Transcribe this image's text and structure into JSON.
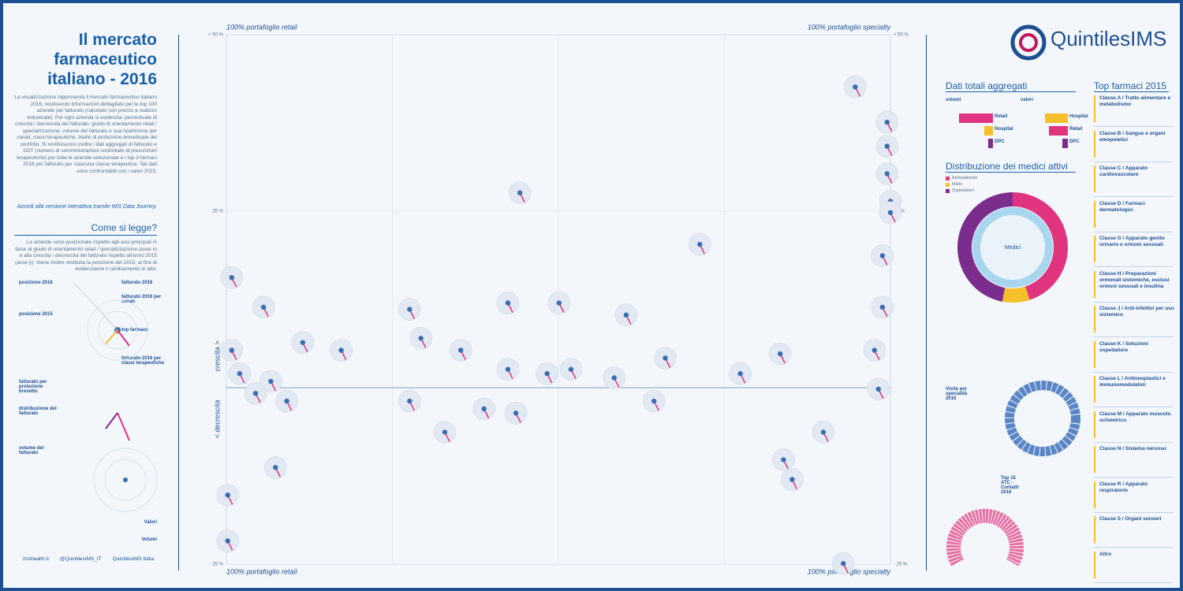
{
  "header": {
    "title": "Il mercato farmaceutico italiano - 2016",
    "intro": "La visualizzazione rappresenta il mercato farmaceutico italiano 2016, restituendo informazioni dettagliate per le top 100 aziende per fatturato (calcolato con prezzo a realizzo industriale). Per ogni azienda si evidenzia: percentuale di crescita / decrescita del fatturato, grado di orientamento retail / specializzazione, volume del fatturato e sua ripartizione per canali, classi terapeutiche, livello di protezione brevettuale del portfolio. Si restituiscono inoltre i dati aggregati di fatturato e DDT (numero di somministrazioni controllate di prescrizioni terapeutiche) per tutte le aziende selezionate e i top 3 farmaci 2016 per fatturato per ciascuna classe terapeutica. Tali dati sono confrontabili con i valori 2015.",
    "link": "Accedi alla versione interattiva tramite IMS Data Journey."
  },
  "how_to_read": {
    "title": "Come si legge?",
    "text": "Le aziende sono posizionate rispetto agli assi principali in base al grado di orientamento retail / specializzazione (asse x) e alla crescita / decrescita del fatturato rispetto all'anno 2015 (asse y). Viene inoltre restituita la posizione del 2015, al fine di evidenziarne il cambiamento in atto.",
    "legend": [
      "posizione 2016",
      "fatturato 2016",
      "posizione 2015",
      "fatturato 2016 per canali",
      "top farmaco",
      "fatturato 2016 per classi terapeutiche",
      "fatturato per protezione brevetto",
      "distribuzione del fatturato",
      "volume del fatturato"
    ],
    "notes": [
      "Valori",
      "Volumi"
    ]
  },
  "footer": {
    "social": [
      "imshealth.it",
      "@QuintilesIMS_IT",
      "QuintilesIMS Italia"
    ]
  },
  "logo": "QuintilesIMS",
  "chart_data": {
    "type": "scatter",
    "corners": {
      "top_left": "100% portafoglio retail",
      "top_right": "100% portafoglio specialty",
      "bottom_left": "100% portafoglio retail",
      "bottom_right": "100% portafoglio specialty"
    },
    "y_label_up": "crescita >",
    "y_label_down": "< decrescita",
    "xlim": [
      0,
      100
    ],
    "ylim": [
      -25,
      50
    ],
    "yticks": [
      {
        "value": 50,
        "label": "+ 50 %"
      },
      {
        "value": 25,
        "label": "25 %"
      },
      {
        "value": -25,
        "label": "- 25 %"
      }
    ],
    "color": "#3b6db3",
    "x": [
      94.7,
      99.5,
      99.5,
      99.5,
      100,
      100,
      98.8,
      44.2,
      71.3,
      0.8,
      50.1,
      42.4,
      35.3,
      29.3,
      27.6,
      27.6,
      32.9,
      43.6,
      42.4,
      48.3,
      51.9,
      58.4,
      64.4,
      60.2,
      66.1,
      38.8,
      83.4,
      89.9,
      83.9,
      85.2,
      92.9,
      77.4,
      0.8,
      2,
      4.4,
      6.7,
      9.1,
      5.6,
      11.5,
      17.3,
      0.2,
      0.2,
      7.4,
      98.2,
      97.6,
      98.8
    ],
    "values": [
      42.6,
      37.6,
      34.2,
      30.3,
      26.4,
      24.8,
      18.7,
      27.6,
      20.3,
      15.6,
      12,
      12,
      5.3,
      7,
      11.1,
      -1.9,
      -6.3,
      -3.6,
      2.6,
      2,
      2.6,
      1.4,
      -1.9,
      10.3,
      4.2,
      -3,
      4.8,
      -6.3,
      -10.2,
      -13,
      -24.9,
      2,
      5.3,
      2,
      -0.8,
      0.9,
      -1.9,
      11.4,
      6.4,
      5.3,
      -15.2,
      -21.7,
      -11.3,
      -0.2,
      5.3,
      11.4
    ]
  },
  "aggregates": {
    "title": "Dati totali aggregati",
    "groups": [
      {
        "name": "volumi",
        "bars": [
          {
            "name": "Retail",
            "color": "#e0347f",
            "value": 72
          },
          {
            "name": "Hospital",
            "color": "#f6c02c",
            "value": 18
          },
          {
            "name": "DPC",
            "color": "#7b2d8e",
            "value": 10
          }
        ]
      },
      {
        "name": "valori",
        "bars": [
          {
            "name": "Hospital",
            "color": "#f6c02c",
            "value": 48
          },
          {
            "name": "Retail",
            "color": "#e0347f",
            "value": 40
          },
          {
            "name": "DPC",
            "color": "#7b2d8e",
            "value": 12
          }
        ]
      }
    ]
  },
  "doctors": {
    "title": "Distribuzione dei medici attivi",
    "legend": [
      {
        "name": "Ambulatoriali",
        "color": "#e0347f",
        "value": 45
      },
      {
        "name": "Misto",
        "color": "#f6c02c",
        "value": 8
      },
      {
        "name": "Ospedalieri",
        "color": "#7b2d8e",
        "value": 47
      }
    ],
    "center": "Medici",
    "visits_title": "Visite per specialità 2016",
    "atc_title": "Top 15 ATC - Contatti 2016"
  },
  "top_drugs": {
    "title": "Top farmaci 2015",
    "classes": [
      "Classe A / Tratto alimentare e metabolismo",
      "Classe B / Sangue e organi emopoietici",
      "Classe C / Apparato cardiovascolare",
      "Classe D / Farmaci dermatologici",
      "Classe G / Apparato genito urinario e ormoni sessuali",
      "Classe H / Preparazioni ormonali sistemiche, esclusi ormoni sessuali e insulina",
      "Classe J / Anti-infettivi per uso sistemico",
      "Classe K / Soluzioni ospedaliere",
      "Classe L / Antineoplastici e immunomodulatori",
      "Classe M / Apparato muscolo scheletrico",
      "Classe N / Sistema nervoso",
      "Classe R / Apparato respiratorio",
      "Classe S / Organi sensori",
      "Altro"
    ]
  }
}
